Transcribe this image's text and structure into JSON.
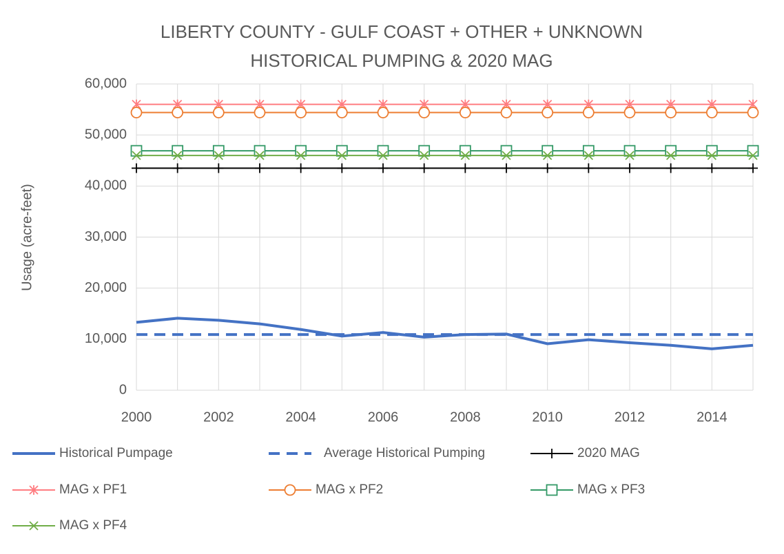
{
  "chart_data": {
    "type": "line",
    "title": "LIBERTY COUNTY - GULF COAST + OTHER + UNKNOWN",
    "subtitle": "HISTORICAL PUMPING & 2020 MAG",
    "y_label": "Usage (acre-feet)",
    "x": [
      2000,
      2001,
      2002,
      2003,
      2004,
      2005,
      2006,
      2007,
      2008,
      2009,
      2010,
      2011,
      2012,
      2013,
      2014,
      2015
    ],
    "xlim": [
      2000,
      2015
    ],
    "xticks": [
      2000,
      2002,
      2004,
      2006,
      2008,
      2010,
      2012,
      2014
    ],
    "ylim": [
      0,
      60000
    ],
    "yticks": [
      0,
      {
        "value": 10000,
        "label": "10,000"
      },
      {
        "value": 20000,
        "label": "20,000"
      },
      {
        "value": 30000,
        "label": "30,000"
      },
      {
        "value": 40000,
        "label": "40,000"
      },
      {
        "value": 50000,
        "label": "50,000"
      },
      {
        "value": 60000,
        "label": "60,000"
      }
    ],
    "grid": true,
    "legend": "bottom",
    "series": [
      {
        "name": "Historical Pumpage",
        "color": "#4472c4",
        "dash": "solid",
        "marker": "none",
        "values": [
          13300,
          14100,
          13700,
          13000,
          11900,
          10600,
          11300,
          10400,
          10900,
          11000,
          9100,
          9900,
          9300,
          8800,
          8100,
          8800
        ]
      },
      {
        "name": "Average Historical Pumping",
        "color": "#4472c4",
        "dash": "dashed",
        "marker": "none",
        "values": [
          10900,
          10900,
          10900,
          10900,
          10900,
          10900,
          10900,
          10900,
          10900,
          10900,
          10900,
          10900,
          10900,
          10900,
          10900,
          10900
        ]
      },
      {
        "name": "2020 MAG",
        "color": "#000000",
        "dash": "solid",
        "marker": "plus",
        "values": [
          43500,
          43500,
          43500,
          43500,
          43500,
          43500,
          43500,
          43500,
          43500,
          43500,
          43500,
          43500,
          43500,
          43500,
          43500,
          43500
        ]
      },
      {
        "name": "MAG x PF1",
        "color": "#ff7c80",
        "dash": "solid",
        "marker": "asterisk",
        "values": [
          56000,
          56000,
          56000,
          56000,
          56000,
          56000,
          56000,
          56000,
          56000,
          56000,
          56000,
          56000,
          56000,
          56000,
          56000,
          56000
        ]
      },
      {
        "name": "MAG x PF2",
        "color": "#ed7d31",
        "dash": "solid",
        "marker": "circle",
        "values": [
          54400,
          54400,
          54400,
          54400,
          54400,
          54400,
          54400,
          54400,
          54400,
          54400,
          54400,
          54400,
          54400,
          54400,
          54400,
          54400
        ]
      },
      {
        "name": "MAG x PF3",
        "color": "#339966",
        "dash": "solid",
        "marker": "square",
        "values": [
          46900,
          46900,
          46900,
          46900,
          46900,
          46900,
          46900,
          46900,
          46900,
          46900,
          46900,
          46900,
          46900,
          46900,
          46900,
          46900
        ]
      },
      {
        "name": "MAG x PF4",
        "color": "#70ad47",
        "dash": "solid",
        "marker": "x",
        "values": [
          46000,
          46000,
          46000,
          46000,
          46000,
          46000,
          46000,
          46000,
          46000,
          46000,
          46000,
          46000,
          46000,
          46000,
          46000,
          46000
        ]
      }
    ]
  }
}
